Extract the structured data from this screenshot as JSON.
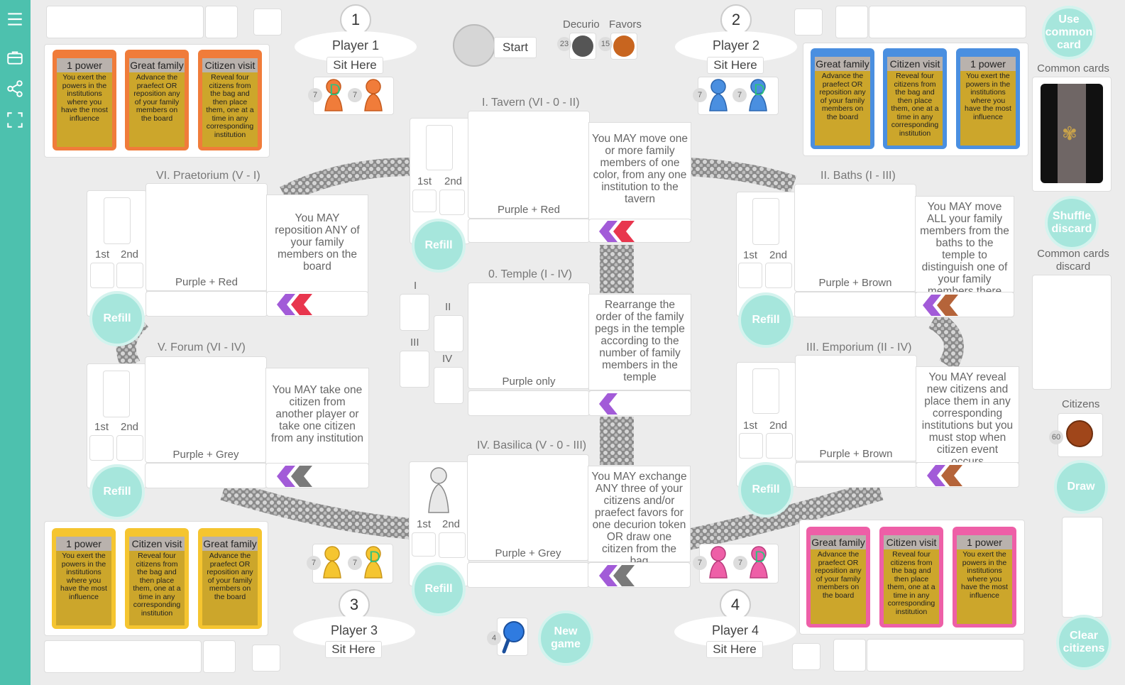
{
  "sidebar": {
    "icons": [
      "menu-icon",
      "briefcase-icon",
      "share-icon",
      "fullscreen-icon"
    ]
  },
  "players": [
    {
      "number": "1",
      "name": "Player 1",
      "sit": "Sit Here"
    },
    {
      "number": "2",
      "name": "Player 2",
      "sit": "Sit Here"
    },
    {
      "number": "3",
      "name": "Player 3",
      "sit": "Sit Here"
    },
    {
      "number": "4",
      "name": "Player 4",
      "sit": "Sit Here"
    }
  ],
  "start": {
    "label": "Start"
  },
  "tokens": {
    "decurio_label": "Decurio",
    "favors_label": "Favors",
    "decurio_count": "23",
    "favors_count": "15"
  },
  "pegs": {
    "p1a": "7",
    "p1b": "7",
    "p2a": "7",
    "p2b": "7",
    "p3a": "7",
    "p3b": "7",
    "p4a": "7",
    "p4b": "7"
  },
  "cards": {
    "p1": [
      {
        "title": "1 power",
        "body": "You exert the powers in the institutions where you have the most influence"
      },
      {
        "title": "Great family",
        "body": "Advance the praefect OR reposition any of your family members on the board"
      },
      {
        "title": "Citizen visit",
        "body": "Reveal four citizens from the bag and then place them, one at a time in any corresponding institution"
      }
    ],
    "p2": [
      {
        "title": "Great family",
        "body": "Advance the praefect OR reposition any of your family members on the board"
      },
      {
        "title": "Citizen visit",
        "body": "Reveal four citizens from the bag and then place them, one at a time in any corresponding institution"
      },
      {
        "title": "1 power",
        "body": "You exert the powers in the institutions where you have the most influence"
      }
    ],
    "p3": [
      {
        "title": "1 power",
        "body": "You exert the powers in the institutions where you have the most influence"
      },
      {
        "title": "Citizen visit",
        "body": "Reveal four citizens from the bag and then place them, one at a time in any corresponding institution"
      },
      {
        "title": "Great family",
        "body": "Advance the praefect OR reposition any of your family members on the board"
      }
    ],
    "p4": [
      {
        "title": "Great family",
        "body": "Advance the praefect OR reposition any of your family members on the board"
      },
      {
        "title": "Citizen visit",
        "body": "Reveal four citizens from the bag and then place them, one at a time in any corresponding institution"
      },
      {
        "title": "1 power",
        "body": "You exert the powers in the institutions where you have the most influence"
      }
    ]
  },
  "institutions": {
    "tavern": {
      "title": "I. Tavern (VI - 0 - II)",
      "colors": "Purple + Red",
      "desc": "You MAY move one or more family members of one color, from any one institution to the tavern",
      "first": "1st",
      "second": "2nd"
    },
    "praetorium": {
      "title": "VI. Praetorium (V - I)",
      "colors": "Purple + Red",
      "desc": "You MAY reposition ANY of your family members on the board",
      "first": "1st",
      "second": "2nd"
    },
    "baths": {
      "title": "II. Baths (I - III)",
      "colors": "Purple + Brown",
      "desc": "You MAY move ALL your family members from the baths to the temple to distinguish one of your family members there",
      "first": "1st",
      "second": "2nd"
    },
    "temple": {
      "title": "0. Temple (I - IV)",
      "colors": "Purple only",
      "desc": "Rearrange the order of the family pegs in the temple according to the number of family members in the temple",
      "slots": [
        "I",
        "II",
        "III",
        "IV"
      ]
    },
    "forum": {
      "title": "V. Forum (VI - IV)",
      "colors": "Purple + Grey",
      "desc": "You MAY take one citizen from another player or take one citizen from any institution",
      "first": "1st",
      "second": "2nd"
    },
    "emporium": {
      "title": "III. Emporium (II - IV)",
      "colors": "Purple + Brown",
      "desc": "You MAY reveal new citizens and place them in any corresponding institutions but you must stop when citizen event occurs",
      "first": "1st",
      "second": "2nd"
    },
    "basilica": {
      "title": "IV. Basilica (V - 0 - III)",
      "colors": "Purple + Grey",
      "desc": "You MAY exchange ANY three of your citizens and/or praefect favors for one decurion token OR draw one citizen from the bag",
      "first": "1st",
      "second": "2nd"
    }
  },
  "buttons": {
    "refill": "Refill",
    "use_common": "Use common card",
    "shuffle": "Shuffle discard",
    "draw": "Draw",
    "clear": "Clear citizens",
    "new_game": "New game"
  },
  "right": {
    "common_cards": "Common cards",
    "common_discard": "Common cards discard",
    "citizens": "Citizens",
    "citizens_count": "60"
  },
  "praefect": {
    "count": "4"
  },
  "colors": {
    "sidebar": "#4dc1ae",
    "button": "#a6e6dc",
    "orange": "#f07c3a",
    "blue": "#4a8fe0",
    "yellow": "#f5c530",
    "pink": "#ee5fa7",
    "purple": "#a25bd8",
    "red": "#e8364e",
    "brown": "#b5643a",
    "grey": "#7a7a7a"
  }
}
